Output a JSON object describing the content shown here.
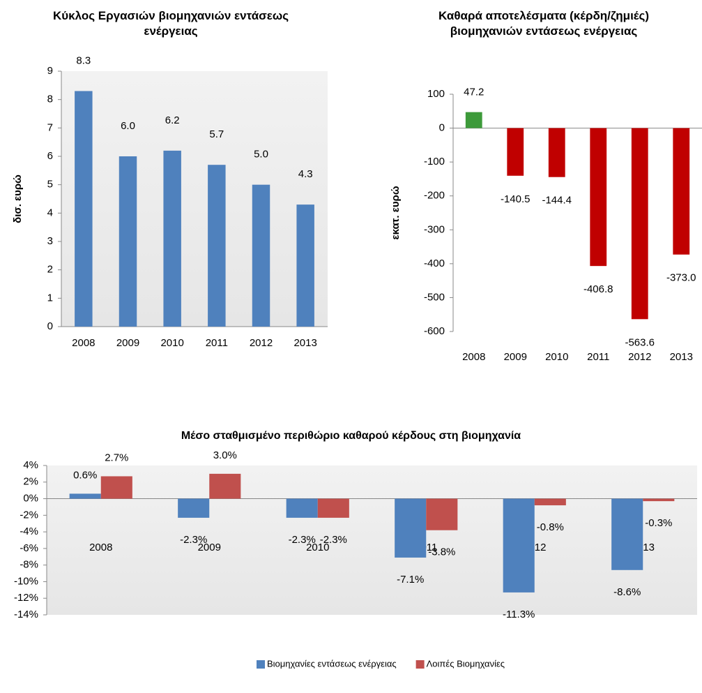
{
  "chart_data": [
    {
      "type": "bar",
      "title": "Κύκλος Εργασιών βιομηχανιών εντάσεως ενέργειας",
      "ylabel": "δισ. ευρώ",
      "categories": [
        "2008",
        "2009",
        "2010",
        "2011",
        "2012",
        "2013"
      ],
      "series": [
        {
          "name": null,
          "color": "#4f81bd",
          "values": [
            8.3,
            6.0,
            6.2,
            5.7,
            5.0,
            4.3
          ],
          "value_labels": [
            "8.3",
            "6.0",
            "6.2",
            "5.7",
            "5.0",
            "4.3"
          ]
        }
      ],
      "ylim": [
        0,
        9
      ],
      "yticks": [
        0,
        1,
        2,
        3,
        4,
        5,
        6,
        7,
        8,
        9
      ]
    },
    {
      "type": "bar",
      "title": "Καθαρά αποτελέσματα (κέρδη/ζημιές) βιομηχανιών εντάσεως ενέργειας",
      "ylabel": "εκατ. ευρώ",
      "categories": [
        "2008",
        "2009",
        "2010",
        "2011",
        "2012",
        "2013"
      ],
      "series": [
        {
          "name": null,
          "colors": [
            "#3d9a3a",
            "#c00000",
            "#c00000",
            "#c00000",
            "#c00000",
            "#c00000"
          ],
          "values": [
            47.2,
            -140.5,
            -144.4,
            -406.8,
            -563.6,
            -373.0
          ],
          "value_labels": [
            "47.2",
            "-140.5",
            "-144.4",
            "-406.8",
            "-563.6",
            "-373.0"
          ]
        }
      ],
      "ylim": [
        -600,
        100
      ],
      "yticks": [
        -600,
        -500,
        -400,
        -300,
        -200,
        -100,
        0,
        100
      ]
    },
    {
      "type": "bar",
      "title": "Μέσο σταθμισμένο περιθώριο καθαρού κέρδους στη βιομηχανία",
      "categories": [
        "2008",
        "2009",
        "2010",
        "2011",
        "2012",
        "2013"
      ],
      "series": [
        {
          "name": "Βιομηχανίες εντάσεως ενέργειας",
          "color": "#4f81bd",
          "values": [
            0.6,
            -2.3,
            -2.3,
            -7.1,
            -11.3,
            -8.6
          ],
          "value_labels": [
            "0.6%",
            "-2.3%",
            "-2.3%",
            "-7.1%",
            "-11.3%",
            "-8.6%"
          ]
        },
        {
          "name": "Λοιπές Βιομηχανίες",
          "color": "#c0504d",
          "values": [
            2.7,
            3.0,
            -2.3,
            -3.8,
            -0.8,
            -0.3
          ],
          "value_labels": [
            "2.7%",
            "3.0%",
            "-2.3%",
            "-3.8%",
            "-0.8%",
            "-0.3%"
          ]
        }
      ],
      "ylim": [
        -14,
        4
      ],
      "yticks": [
        {
          "value": -14,
          "label": "-14%"
        },
        {
          "value": -12,
          "label": "-12%"
        },
        {
          "value": -10,
          "label": "-10%"
        },
        {
          "value": -8,
          "label": "-8%"
        },
        {
          "value": -6,
          "label": "-6%"
        },
        {
          "value": -4,
          "label": "-4%"
        },
        {
          "value": -2,
          "label": "-2%"
        },
        {
          "value": 0,
          "label": "0%"
        },
        {
          "value": 2,
          "label": "2%"
        },
        {
          "value": 4,
          "label": "4%"
        }
      ],
      "legend": "bottom"
    }
  ]
}
